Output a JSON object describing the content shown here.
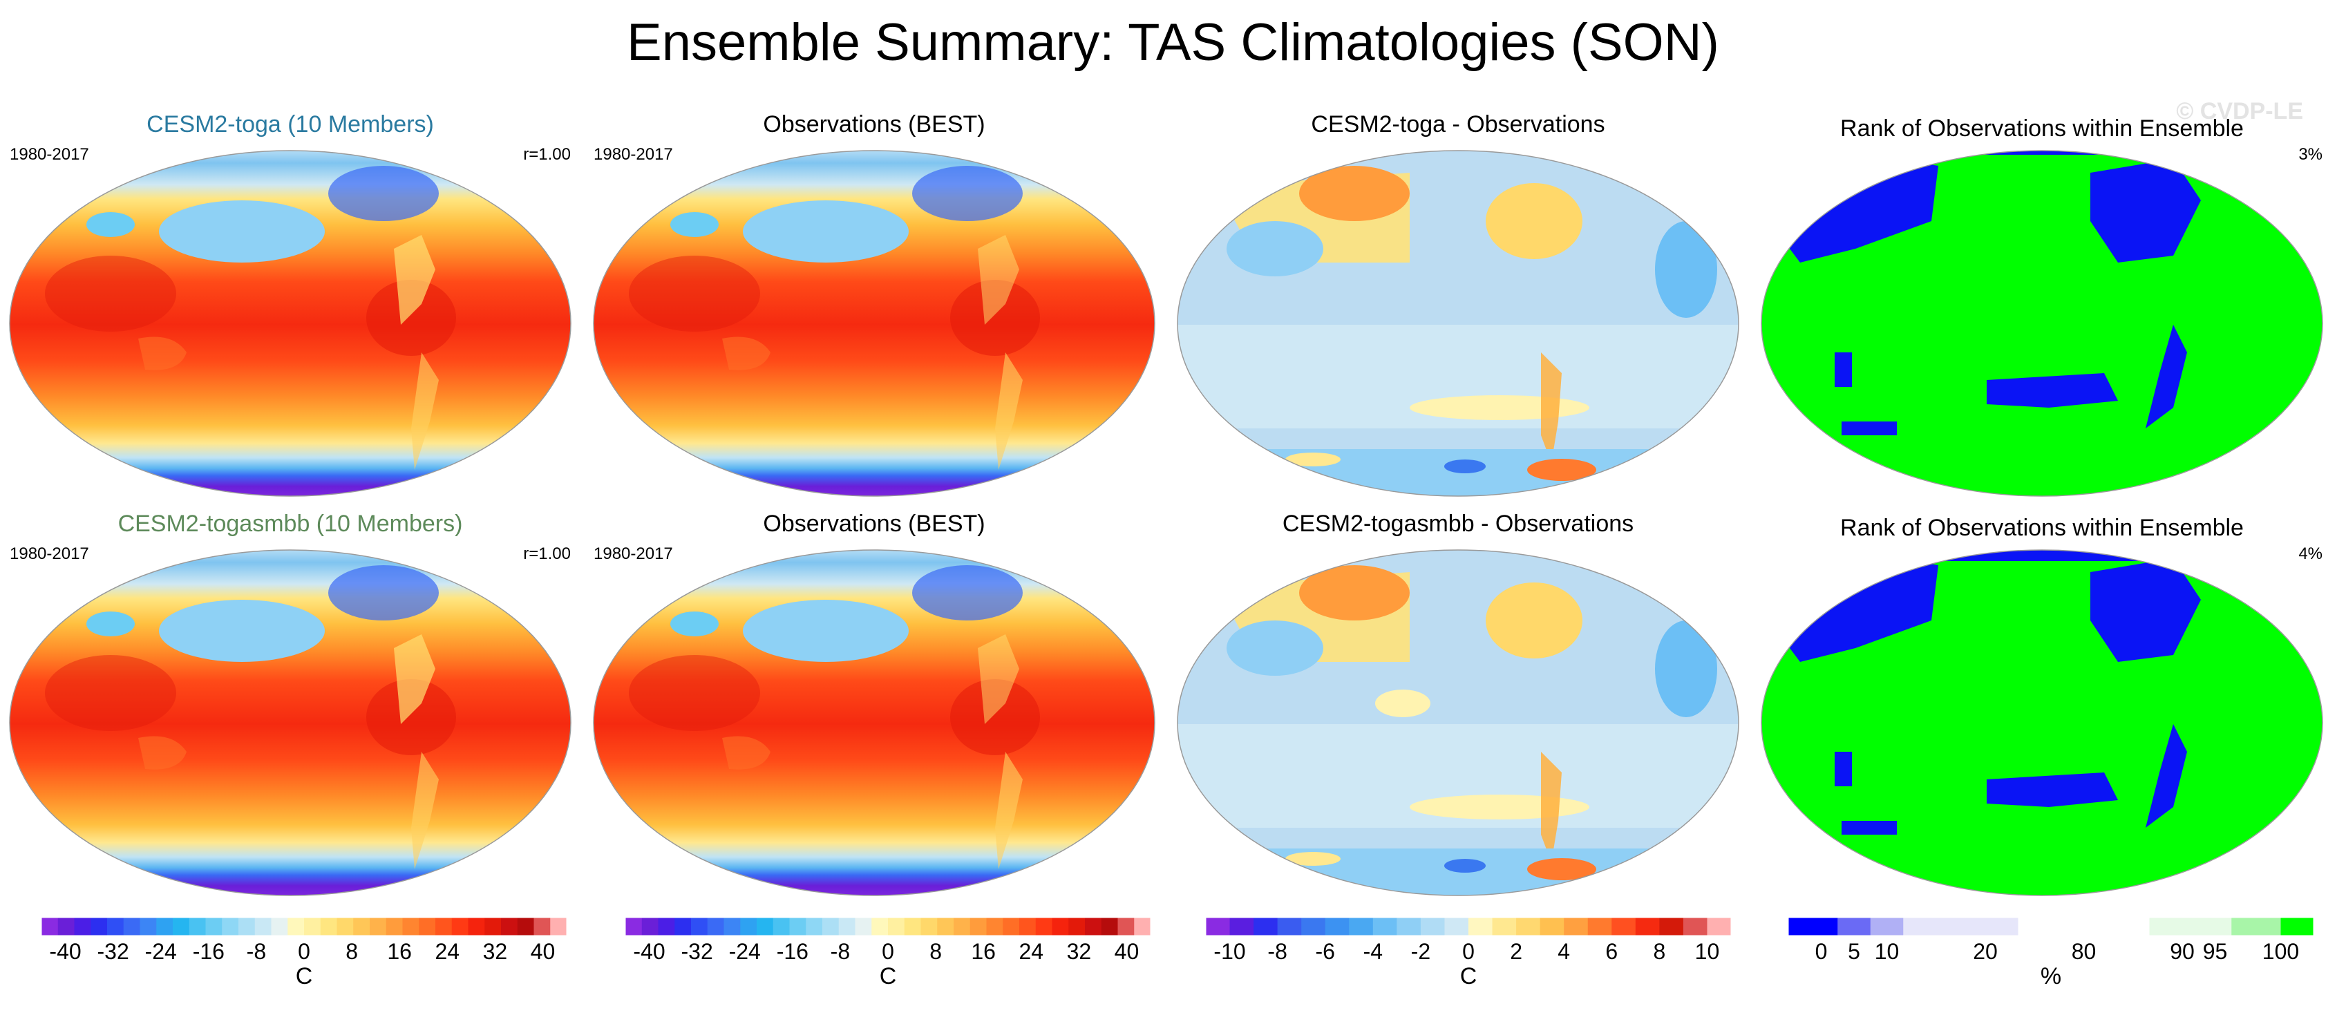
{
  "figure": {
    "title": "Ensemble Summary: TAS Climatologies (SON)",
    "watermark": "© CVDP-LE"
  },
  "colors": {
    "model_title": "#2a7aa0",
    "model2_title": "#5d8a5a",
    "ocean_blue": "#bcdcf2",
    "rank_green": "#00ff00",
    "rank_blue": "#0a14f5"
  },
  "chart_data": [
    {
      "type": "heatmap",
      "title": "CESM2-toga (10 Members)",
      "period": "1980-2017",
      "stat": "r=1.00",
      "field": "climatology",
      "units": "C"
    },
    {
      "type": "heatmap",
      "title": "Observations (BEST)",
      "period": "1980-2017",
      "stat": "",
      "field": "climatology",
      "units": "C"
    },
    {
      "type": "heatmap",
      "title": "CESM2-toga - Observations",
      "period": "",
      "stat": "",
      "field": "difference",
      "units": "C"
    },
    {
      "type": "heatmap",
      "title": "Rank of Observations within Ensemble",
      "period": "",
      "stat": "3%",
      "field": "rank",
      "units": "%"
    },
    {
      "type": "heatmap",
      "title": "CESM2-togasmbb (10 Members)",
      "period": "1980-2017",
      "stat": "r=1.00",
      "field": "climatology",
      "units": "C"
    },
    {
      "type": "heatmap",
      "title": "Observations (BEST)",
      "period": "1980-2017",
      "stat": "",
      "field": "climatology",
      "units": "C"
    },
    {
      "type": "heatmap",
      "title": "CESM2-togasmbb - Observations",
      "period": "",
      "stat": "",
      "field": "difference",
      "units": "C"
    },
    {
      "type": "heatmap",
      "title": "Rank of Observations within Ensemble",
      "period": "",
      "stat": "4%",
      "field": "rank",
      "units": "%"
    }
  ],
  "colorbars": [
    {
      "label": "C",
      "range": [
        -44,
        44
      ],
      "ticks": [
        -40,
        -32,
        -24,
        -16,
        -8,
        0,
        8,
        16,
        24,
        32,
        40
      ],
      "tick_labels": [
        "-40",
        "-32",
        "-24",
        "-16",
        "-8",
        "0",
        "8",
        "16",
        "24",
        "32",
        "40"
      ],
      "colors": [
        "#8a2be2",
        "#6a1fd8",
        "#4b1ee6",
        "#2c2ff0",
        "#2f4ff5",
        "#3a6af5",
        "#3c85f5",
        "#2ea2f2",
        "#25b5f0",
        "#49c2f2",
        "#6ccdf3",
        "#8ed7f5",
        "#acdff5",
        "#c9e8f5",
        "#e6f2f2",
        "#fff8bb",
        "#fff0a0",
        "#ffe680",
        "#ffd86a",
        "#ffc657",
        "#ffb24a",
        "#ff9c3c",
        "#ff8530",
        "#ff6e26",
        "#ff551d",
        "#ff3a14",
        "#f5230d",
        "#e31a0a",
        "#cc1010",
        "#b50c0c",
        "#e05555",
        "#ffb0b0"
      ]
    },
    {
      "label": "C",
      "range": [
        -44,
        44
      ],
      "ticks": [
        -40,
        -32,
        -24,
        -16,
        -8,
        0,
        8,
        16,
        24,
        32,
        40
      ],
      "tick_labels": [
        "-40",
        "-32",
        "-24",
        "-16",
        "-8",
        "0",
        "8",
        "16",
        "24",
        "32",
        "40"
      ],
      "colors": [
        "#8a2be2",
        "#6a1fd8",
        "#4b1ee6",
        "#2c2ff0",
        "#2f4ff5",
        "#3a6af5",
        "#3c85f5",
        "#2ea2f2",
        "#25b5f0",
        "#49c2f2",
        "#6ccdf3",
        "#8ed7f5",
        "#acdff5",
        "#c9e8f5",
        "#e6f2f2",
        "#fff8bb",
        "#fff0a0",
        "#ffe680",
        "#ffd86a",
        "#ffc657",
        "#ffb24a",
        "#ff9c3c",
        "#ff8530",
        "#ff6e26",
        "#ff551d",
        "#ff3a14",
        "#f5230d",
        "#e31a0a",
        "#cc1010",
        "#b50c0c",
        "#e05555",
        "#ffb0b0"
      ]
    },
    {
      "label": "C",
      "range": [
        -11,
        11
      ],
      "ticks": [
        -10,
        -8,
        -6,
        -4,
        -2,
        0,
        2,
        4,
        6,
        8,
        10
      ],
      "tick_labels": [
        "-10",
        "-8",
        "-6",
        "-4",
        "-2",
        "0",
        "2",
        "4",
        "6",
        "8",
        "10"
      ],
      "colors": [
        "#8a2be2",
        "#5a1ee0",
        "#2c2ff0",
        "#3a5cf0",
        "#3a78f0",
        "#3c92f2",
        "#4aa8f2",
        "#6cbff5",
        "#8fcff5",
        "#b0dcf5",
        "#cfe8f5",
        "#fff7c0",
        "#ffe890",
        "#ffd870",
        "#ffc050",
        "#ffa040",
        "#ff7a2e",
        "#ff5020",
        "#f52a10",
        "#d41a0a",
        "#e05555",
        "#ffb0b0"
      ]
    },
    {
      "label": "%",
      "range": [
        0,
        1
      ],
      "ticks": [
        0.0625,
        0.125,
        0.1875,
        0.375,
        0.5625,
        0.75,
        0.8125,
        0.9375
      ],
      "tick_labels": [
        "0",
        "5",
        "10",
        "20",
        "80",
        "90",
        "95",
        "100"
      ],
      "bins": [
        0,
        0.09375,
        0.15625,
        0.21875,
        0.4375,
        0.6875,
        0.84375,
        0.9375,
        1
      ],
      "colors": [
        "#0000ff",
        "#6a6af5",
        "#b0b0f5",
        "#e6e6fa",
        "#ffffff",
        "#e6fae6",
        "#a8f5a8",
        "#00ff00"
      ]
    }
  ]
}
